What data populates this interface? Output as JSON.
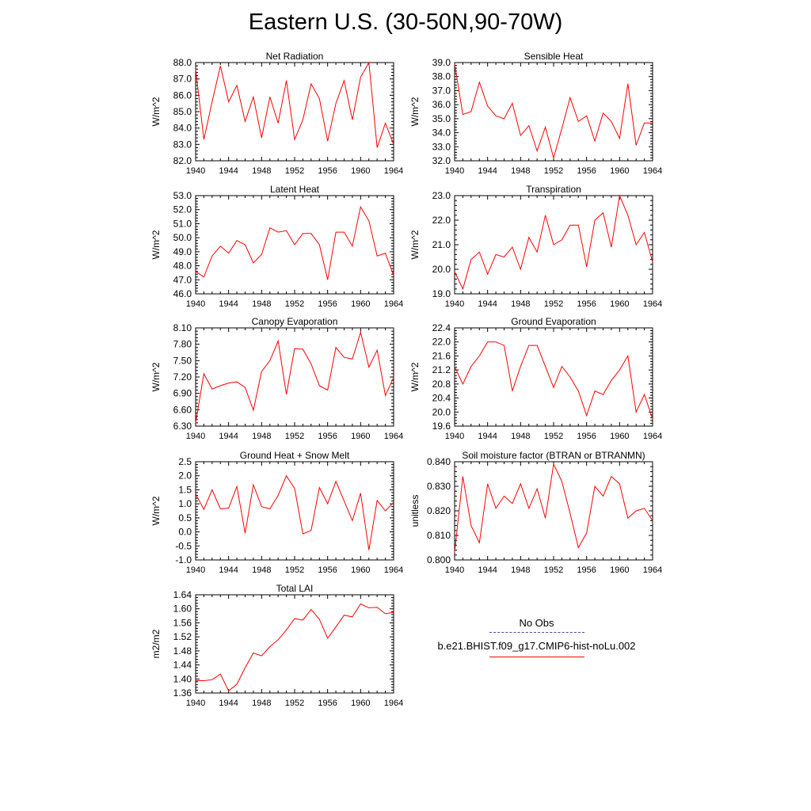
{
  "figure": {
    "title": "Eastern U.S. (30-50N,90-70W)"
  },
  "legend": {
    "obs_label": "No Obs",
    "model_label": "b.e21.BHIST.f09_g17.CMIP6-hist-noLu.002",
    "obs_color": "#4a4aa0",
    "model_color": "#ff0000"
  },
  "chart_data": [
    {
      "type": "line",
      "title": "Net Radiation",
      "ylabel": "W/m^2",
      "xlim": [
        1940,
        1964
      ],
      "xticks": [
        "1940",
        "1944",
        "1948",
        "1952",
        "1956",
        "1960",
        "1964"
      ],
      "ylim": [
        82.0,
        88.0
      ],
      "yticks": [
        "82.0",
        "83.0",
        "84.0",
        "85.0",
        "86.0",
        "87.0",
        "88.0"
      ],
      "series": [
        {
          "x": [
            1940,
            1941,
            1942,
            1943,
            1944,
            1945,
            1946,
            1947,
            1948,
            1949,
            1950,
            1951,
            1952,
            1953,
            1954,
            1955,
            1956,
            1957,
            1958,
            1959,
            1960,
            1961,
            1962,
            1963,
            1964
          ],
          "values": [
            87.6,
            83.3,
            85.6,
            87.8,
            85.6,
            86.6,
            84.4,
            85.9,
            83.4,
            85.9,
            84.3,
            86.9,
            83.3,
            84.5,
            86.7,
            85.8,
            83.2,
            85.5,
            86.9,
            84.5,
            87.1,
            88.0,
            82.8,
            84.3,
            83.0
          ],
          "color": "#ff0000"
        }
      ]
    },
    {
      "type": "line",
      "title": "Sensible Heat",
      "ylabel": "W/m^2",
      "xlim": [
        1940,
        1964
      ],
      "xticks": [
        "1940",
        "1944",
        "1948",
        "1952",
        "1956",
        "1960",
        "1964"
      ],
      "ylim": [
        32.0,
        39.0
      ],
      "yticks": [
        "32.0",
        "33.0",
        "34.0",
        "35.0",
        "36.0",
        "37.0",
        "38.0",
        "39.0"
      ],
      "series": [
        {
          "x": [
            1940,
            1941,
            1942,
            1943,
            1944,
            1945,
            1946,
            1947,
            1948,
            1949,
            1950,
            1951,
            1952,
            1953,
            1954,
            1955,
            1956,
            1957,
            1958,
            1959,
            1960,
            1961,
            1962,
            1963,
            1964
          ],
          "values": [
            38.9,
            35.3,
            35.5,
            37.6,
            35.9,
            35.2,
            35.0,
            36.1,
            33.8,
            34.5,
            32.7,
            34.4,
            32.2,
            34.3,
            36.5,
            34.8,
            35.2,
            33.4,
            35.4,
            34.8,
            33.6,
            37.5,
            33.1,
            34.7,
            34.7
          ],
          "color": "#ff0000"
        }
      ]
    },
    {
      "type": "line",
      "title": "Latent Heat",
      "ylabel": "W/m^2",
      "xlim": [
        1940,
        1964
      ],
      "xticks": [
        "1940",
        "1944",
        "1948",
        "1952",
        "1956",
        "1960",
        "1964"
      ],
      "ylim": [
        46.0,
        53.0
      ],
      "yticks": [
        "46.0",
        "47.0",
        "48.0",
        "49.0",
        "50.0",
        "51.0",
        "52.0",
        "53.0"
      ],
      "series": [
        {
          "x": [
            1940,
            1941,
            1942,
            1943,
            1944,
            1945,
            1946,
            1947,
            1948,
            1949,
            1950,
            1951,
            1952,
            1953,
            1954,
            1955,
            1956,
            1957,
            1958,
            1959,
            1960,
            1961,
            1962,
            1963,
            1964
          ],
          "values": [
            47.6,
            47.2,
            48.7,
            49.4,
            48.9,
            49.8,
            49.5,
            48.2,
            48.8,
            50.7,
            50.4,
            50.5,
            49.5,
            50.3,
            50.3,
            49.5,
            47.0,
            50.4,
            50.4,
            49.4,
            52.2,
            51.2,
            48.7,
            48.9,
            47.3
          ],
          "color": "#ff0000"
        }
      ]
    },
    {
      "type": "line",
      "title": "Transpiration",
      "ylabel": "W/m^2",
      "xlim": [
        1940,
        1964
      ],
      "xticks": [
        "1940",
        "1944",
        "1948",
        "1952",
        "1956",
        "1960",
        "1964"
      ],
      "ylim": [
        19.0,
        23.0
      ],
      "yticks": [
        "19.0",
        "20.0",
        "21.0",
        "22.0",
        "23.0"
      ],
      "series": [
        {
          "x": [
            1940,
            1941,
            1942,
            1943,
            1944,
            1945,
            1946,
            1947,
            1948,
            1949,
            1950,
            1951,
            1952,
            1953,
            1954,
            1955,
            1956,
            1957,
            1958,
            1959,
            1960,
            1961,
            1962,
            1963,
            1964
          ],
          "values": [
            19.9,
            19.2,
            20.4,
            20.7,
            19.8,
            20.6,
            20.5,
            20.9,
            20.0,
            21.3,
            20.7,
            22.2,
            21.0,
            21.2,
            21.8,
            21.8,
            20.1,
            22.0,
            22.3,
            20.9,
            23.0,
            22.2,
            21.0,
            21.5,
            20.3
          ],
          "color": "#ff0000"
        }
      ]
    },
    {
      "type": "line",
      "title": "Canopy Evaporation",
      "ylabel": "W/m^2",
      "xlim": [
        1940,
        1964
      ],
      "xticks": [
        "1940",
        "1944",
        "1948",
        "1952",
        "1956",
        "1960",
        "1964"
      ],
      "ylim": [
        6.3,
        8.1
      ],
      "yticks": [
        "6.30",
        "6.60",
        "6.90",
        "7.20",
        "7.50",
        "7.80",
        "8.10"
      ],
      "series": [
        {
          "x": [
            1940,
            1941,
            1942,
            1943,
            1944,
            1945,
            1946,
            1947,
            1948,
            1949,
            1950,
            1951,
            1952,
            1953,
            1954,
            1955,
            1956,
            1957,
            1958,
            1959,
            1960,
            1961,
            1962,
            1963,
            1964
          ],
          "values": [
            6.36,
            7.26,
            6.98,
            7.04,
            7.09,
            7.11,
            7.01,
            6.59,
            7.3,
            7.5,
            7.86,
            6.88,
            7.72,
            7.71,
            7.44,
            7.04,
            6.96,
            7.74,
            7.56,
            7.53,
            8.02,
            7.38,
            7.69,
            6.86,
            7.19
          ],
          "color": "#ff0000"
        }
      ]
    },
    {
      "type": "line",
      "title": "Ground Evaporation",
      "ylabel": "W/m^2",
      "xlim": [
        1940,
        1964
      ],
      "xticks": [
        "1940",
        "1944",
        "1948",
        "1952",
        "1956",
        "1960",
        "1964"
      ],
      "ylim": [
        19.6,
        22.4
      ],
      "yticks": [
        "19.6",
        "20.0",
        "20.4",
        "20.8",
        "21.2",
        "21.6",
        "22.0",
        "22.4"
      ],
      "series": [
        {
          "x": [
            1940,
            1941,
            1942,
            1943,
            1944,
            1945,
            1946,
            1947,
            1948,
            1949,
            1950,
            1951,
            1952,
            1953,
            1954,
            1955,
            1956,
            1957,
            1958,
            1959,
            1960,
            1961,
            1962,
            1963,
            1964
          ],
          "values": [
            21.3,
            20.8,
            21.3,
            21.6,
            22.0,
            22.0,
            21.9,
            20.6,
            21.3,
            21.9,
            21.9,
            21.3,
            20.7,
            21.3,
            21.0,
            20.6,
            19.9,
            20.6,
            20.5,
            20.9,
            21.2,
            21.6,
            20.0,
            20.5,
            19.8
          ],
          "color": "#ff0000"
        }
      ]
    },
    {
      "type": "line",
      "title": "Ground Heat + Snow Melt",
      "ylabel": "W/m^2",
      "xlim": [
        1940,
        1964
      ],
      "xticks": [
        "1940",
        "1944",
        "1948",
        "1952",
        "1956",
        "1960",
        "1964"
      ],
      "ylim": [
        -1.0,
        2.5
      ],
      "yticks": [
        "-1.0",
        "-0.5",
        "0.0",
        "0.5",
        "1.0",
        "1.5",
        "2.0",
        "2.5"
      ],
      "series": [
        {
          "x": [
            1940,
            1941,
            1942,
            1943,
            1944,
            1945,
            1946,
            1947,
            1948,
            1949,
            1950,
            1951,
            1952,
            1953,
            1954,
            1955,
            1956,
            1957,
            1958,
            1959,
            1960,
            1961,
            1962,
            1963,
            1964
          ],
          "values": [
            1.35,
            0.8,
            1.5,
            0.82,
            0.85,
            1.62,
            -0.05,
            1.68,
            0.9,
            0.82,
            1.3,
            2.0,
            1.55,
            -0.07,
            0.05,
            1.58,
            1.0,
            1.8,
            1.1,
            0.4,
            1.38,
            -0.65,
            1.12,
            0.75,
            1.05
          ],
          "color": "#ff0000"
        }
      ]
    },
    {
      "type": "line",
      "title": "Soil moisture factor (BTRAN or BTRANMN)",
      "ylabel": "unitless",
      "xlim": [
        1940,
        1964
      ],
      "xticks": [
        "1940",
        "1944",
        "1948",
        "1952",
        "1956",
        "1960",
        "1964"
      ],
      "ylim": [
        0.8,
        0.84
      ],
      "yticks": [
        "0.800",
        "0.810",
        "0.820",
        "0.830",
        "0.840"
      ],
      "series": [
        {
          "x": [
            1940,
            1941,
            1942,
            1943,
            1944,
            1945,
            1946,
            1947,
            1948,
            1949,
            1950,
            1951,
            1952,
            1953,
            1954,
            1955,
            1956,
            1957,
            1958,
            1959,
            1960,
            1961,
            1962,
            1963,
            1964
          ],
          "values": [
            0.803,
            0.834,
            0.814,
            0.807,
            0.831,
            0.821,
            0.826,
            0.823,
            0.831,
            0.821,
            0.829,
            0.817,
            0.839,
            0.832,
            0.819,
            0.805,
            0.811,
            0.83,
            0.826,
            0.834,
            0.831,
            0.817,
            0.82,
            0.821,
            0.816
          ],
          "color": "#ff0000"
        }
      ]
    },
    {
      "type": "line",
      "title": "Total LAI",
      "ylabel": "m2/m2",
      "xlim": [
        1940,
        1964
      ],
      "xticks": [
        "1940",
        "1944",
        "1948",
        "1952",
        "1956",
        "1960",
        "1964"
      ],
      "ylim": [
        1.36,
        1.64
      ],
      "yticks": [
        "1.36",
        "1.40",
        "1.44",
        "1.48",
        "1.52",
        "1.56",
        "1.60",
        "1.64"
      ],
      "series": [
        {
          "x": [
            1940,
            1941,
            1942,
            1943,
            1944,
            1945,
            1946,
            1947,
            1948,
            1949,
            1950,
            1951,
            1952,
            1953,
            1954,
            1955,
            1956,
            1957,
            1958,
            1959,
            1960,
            1961,
            1962,
            1963,
            1964
          ],
          "values": [
            1.395,
            1.395,
            1.398,
            1.414,
            1.366,
            1.385,
            1.432,
            1.474,
            1.466,
            1.492,
            1.512,
            1.54,
            1.572,
            1.568,
            1.598,
            1.57,
            1.516,
            1.548,
            1.582,
            1.577,
            1.614,
            1.603,
            1.604,
            1.586,
            1.59
          ],
          "color": "#ff0000"
        }
      ]
    }
  ]
}
